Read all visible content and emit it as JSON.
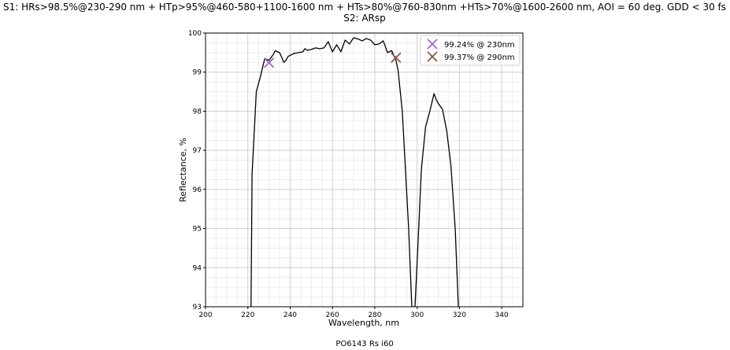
{
  "chart_data": {
    "type": "line",
    "title_line1": "S1: HRs>98.5%@230-290 nm + HTp>95%@460-580+1100-1600 nm + HTs>80%@760-830nm +HTs>70%@1600-2600 nm, AOI = 60 deg. GDD < 30 fs",
    "title_line2": "S2: ARsp",
    "xlabel": "Wavelength, nm",
    "ylabel": "Reflectance, %",
    "footer": "PO6143 Rs i60",
    "xlim": [
      200,
      350
    ],
    "ylim": [
      93,
      100
    ],
    "x_ticks": [
      200,
      220,
      240,
      260,
      280,
      300,
      320,
      340
    ],
    "x_tick_labels": [
      "200",
      "220",
      "240",
      "260",
      "280",
      "300",
      "320",
      "340"
    ],
    "y_ticks": [
      93,
      94,
      95,
      96,
      97,
      98,
      99,
      100
    ],
    "y_tick_labels": [
      "93",
      "94",
      "95",
      "96",
      "97",
      "98",
      "99",
      "100"
    ],
    "grid": true,
    "minor_grid": true,
    "legend_placement": "top-right",
    "series": [
      {
        "color": "#000000",
        "x": [
          221.5,
          222,
          224,
          226,
          228,
          230,
          232,
          233,
          234,
          235,
          236,
          237,
          238,
          239,
          240,
          242,
          244,
          246,
          247,
          248,
          250,
          252,
          254,
          256,
          258,
          260,
          262,
          264,
          266,
          268,
          270,
          272,
          274,
          276,
          278,
          280,
          282,
          284,
          286,
          288,
          290,
          291,
          293,
          295,
          296,
          297.5,
          299,
          300.5,
          302,
          304,
          306,
          308,
          309,
          310,
          312,
          314,
          316,
          318,
          319.5
        ],
        "y": [
          93.0,
          96.4,
          98.5,
          98.9,
          99.35,
          99.3,
          99.45,
          99.55,
          99.52,
          99.5,
          99.38,
          99.25,
          99.3,
          99.4,
          99.43,
          99.48,
          99.5,
          99.52,
          99.6,
          99.56,
          99.58,
          99.62,
          99.6,
          99.62,
          99.78,
          99.52,
          99.7,
          99.52,
          99.82,
          99.72,
          99.88,
          99.85,
          99.8,
          99.86,
          99.82,
          99.7,
          99.72,
          99.8,
          99.5,
          99.55,
          99.3,
          99.05,
          98.0,
          96.0,
          95.0,
          93.0,
          93.0,
          94.7,
          96.5,
          97.6,
          98.0,
          98.45,
          98.3,
          98.2,
          98.05,
          97.5,
          96.6,
          95.0,
          93.0
        ]
      }
    ],
    "markers": [
      {
        "label": "99.24% @ 230nm",
        "x": 230,
        "y": 99.24,
        "color": "#9a66cf"
      },
      {
        "label": "99.37% @ 290nm",
        "x": 290,
        "y": 99.37,
        "color": "#8b5a4a"
      }
    ]
  }
}
